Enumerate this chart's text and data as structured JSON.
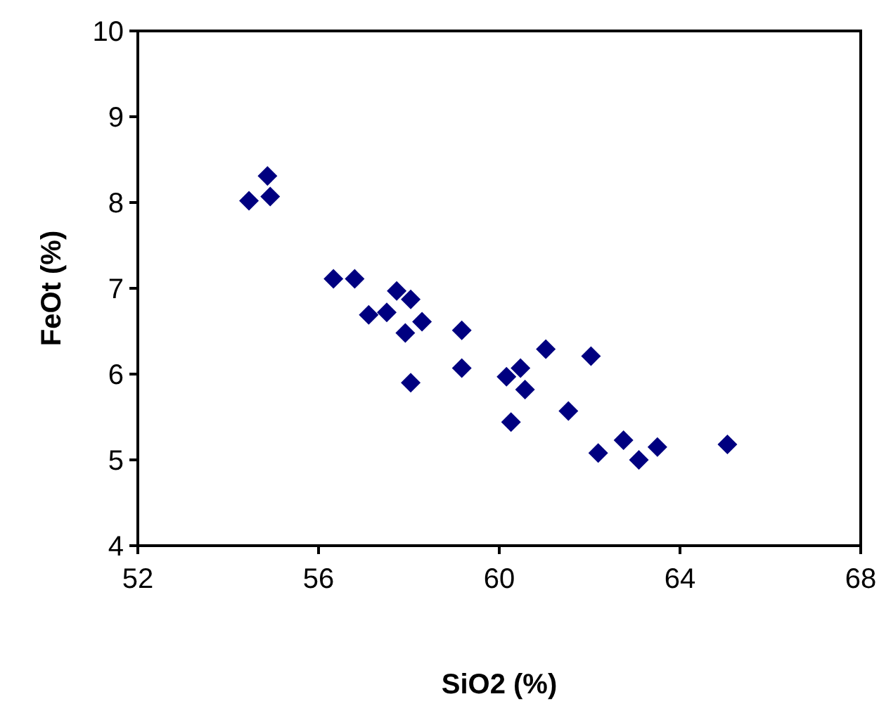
{
  "chart_data": {
    "type": "scatter",
    "xlabel": "SiO2 (%)",
    "ylabel": "FeOt (%)",
    "marker": "diamond",
    "xlim": [
      52,
      68
    ],
    "xticks": [
      52,
      56,
      60,
      64,
      68
    ],
    "ylim": [
      4,
      10
    ],
    "yticks": [
      4,
      5,
      6,
      7,
      8,
      9,
      10
    ],
    "series": [
      {
        "color": "#000080",
        "x": [
          54.87,
          54.46,
          54.93,
          56.33,
          56.8,
          57.73,
          58.04,
          57.11,
          57.51,
          58.29,
          57.92,
          59.17,
          59.17,
          58.04,
          61.03,
          62.03,
          60.16,
          60.47,
          60.57,
          60.26,
          61.53,
          62.19,
          62.75,
          63.09,
          63.5,
          65.05
        ],
        "values": [
          8.31,
          8.02,
          8.07,
          7.11,
          7.11,
          6.97,
          6.87,
          6.69,
          6.72,
          6.61,
          6.48,
          6.51,
          6.07,
          5.9,
          6.29,
          6.21,
          5.97,
          6.07,
          5.82,
          5.44,
          5.57,
          5.08,
          5.23,
          5,
          5.15,
          5.18
        ]
      }
    ]
  }
}
